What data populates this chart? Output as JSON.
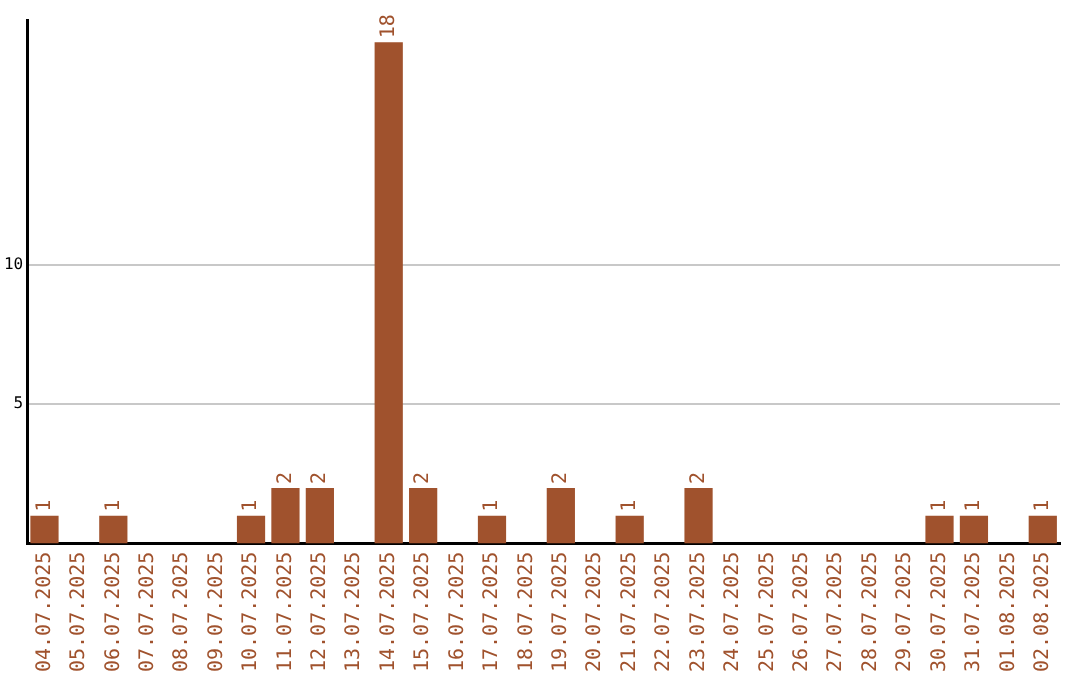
{
  "chart_data": {
    "type": "bar",
    "categories": [
      "04.07.2025",
      "05.07.2025",
      "06.07.2025",
      "07.07.2025",
      "08.07.2025",
      "09.07.2025",
      "10.07.2025",
      "11.07.2025",
      "12.07.2025",
      "13.07.2025",
      "14.07.2025",
      "15.07.2025",
      "16.07.2025",
      "17.07.2025",
      "18.07.2025",
      "19.07.2025",
      "20.07.2025",
      "21.07.2025",
      "22.07.2025",
      "23.07.2025",
      "24.07.2025",
      "25.07.2025",
      "26.07.2025",
      "27.07.2025",
      "28.07.2025",
      "29.07.2025",
      "30.07.2025",
      "31.07.2025",
      "01.08.2025",
      "02.08.2025"
    ],
    "values": [
      1,
      0,
      1,
      0,
      0,
      0,
      1,
      2,
      2,
      0,
      18,
      2,
      0,
      1,
      0,
      2,
      0,
      1,
      0,
      2,
      0,
      0,
      0,
      0,
      0,
      0,
      1,
      1,
      0,
      1
    ],
    "value_labels": [
      "1",
      null,
      "1",
      null,
      null,
      null,
      "1",
      "2",
      "2",
      null,
      "18",
      "2",
      null,
      "1",
      null,
      "2",
      null,
      "1",
      null,
      "2",
      null,
      null,
      null,
      null,
      null,
      null,
      "1",
      "1",
      null,
      "1"
    ],
    "color": "#a0522d",
    "ylim": [
      0,
      18.8
    ],
    "yticks": [
      5,
      10
    ],
    "grid": "y"
  }
}
